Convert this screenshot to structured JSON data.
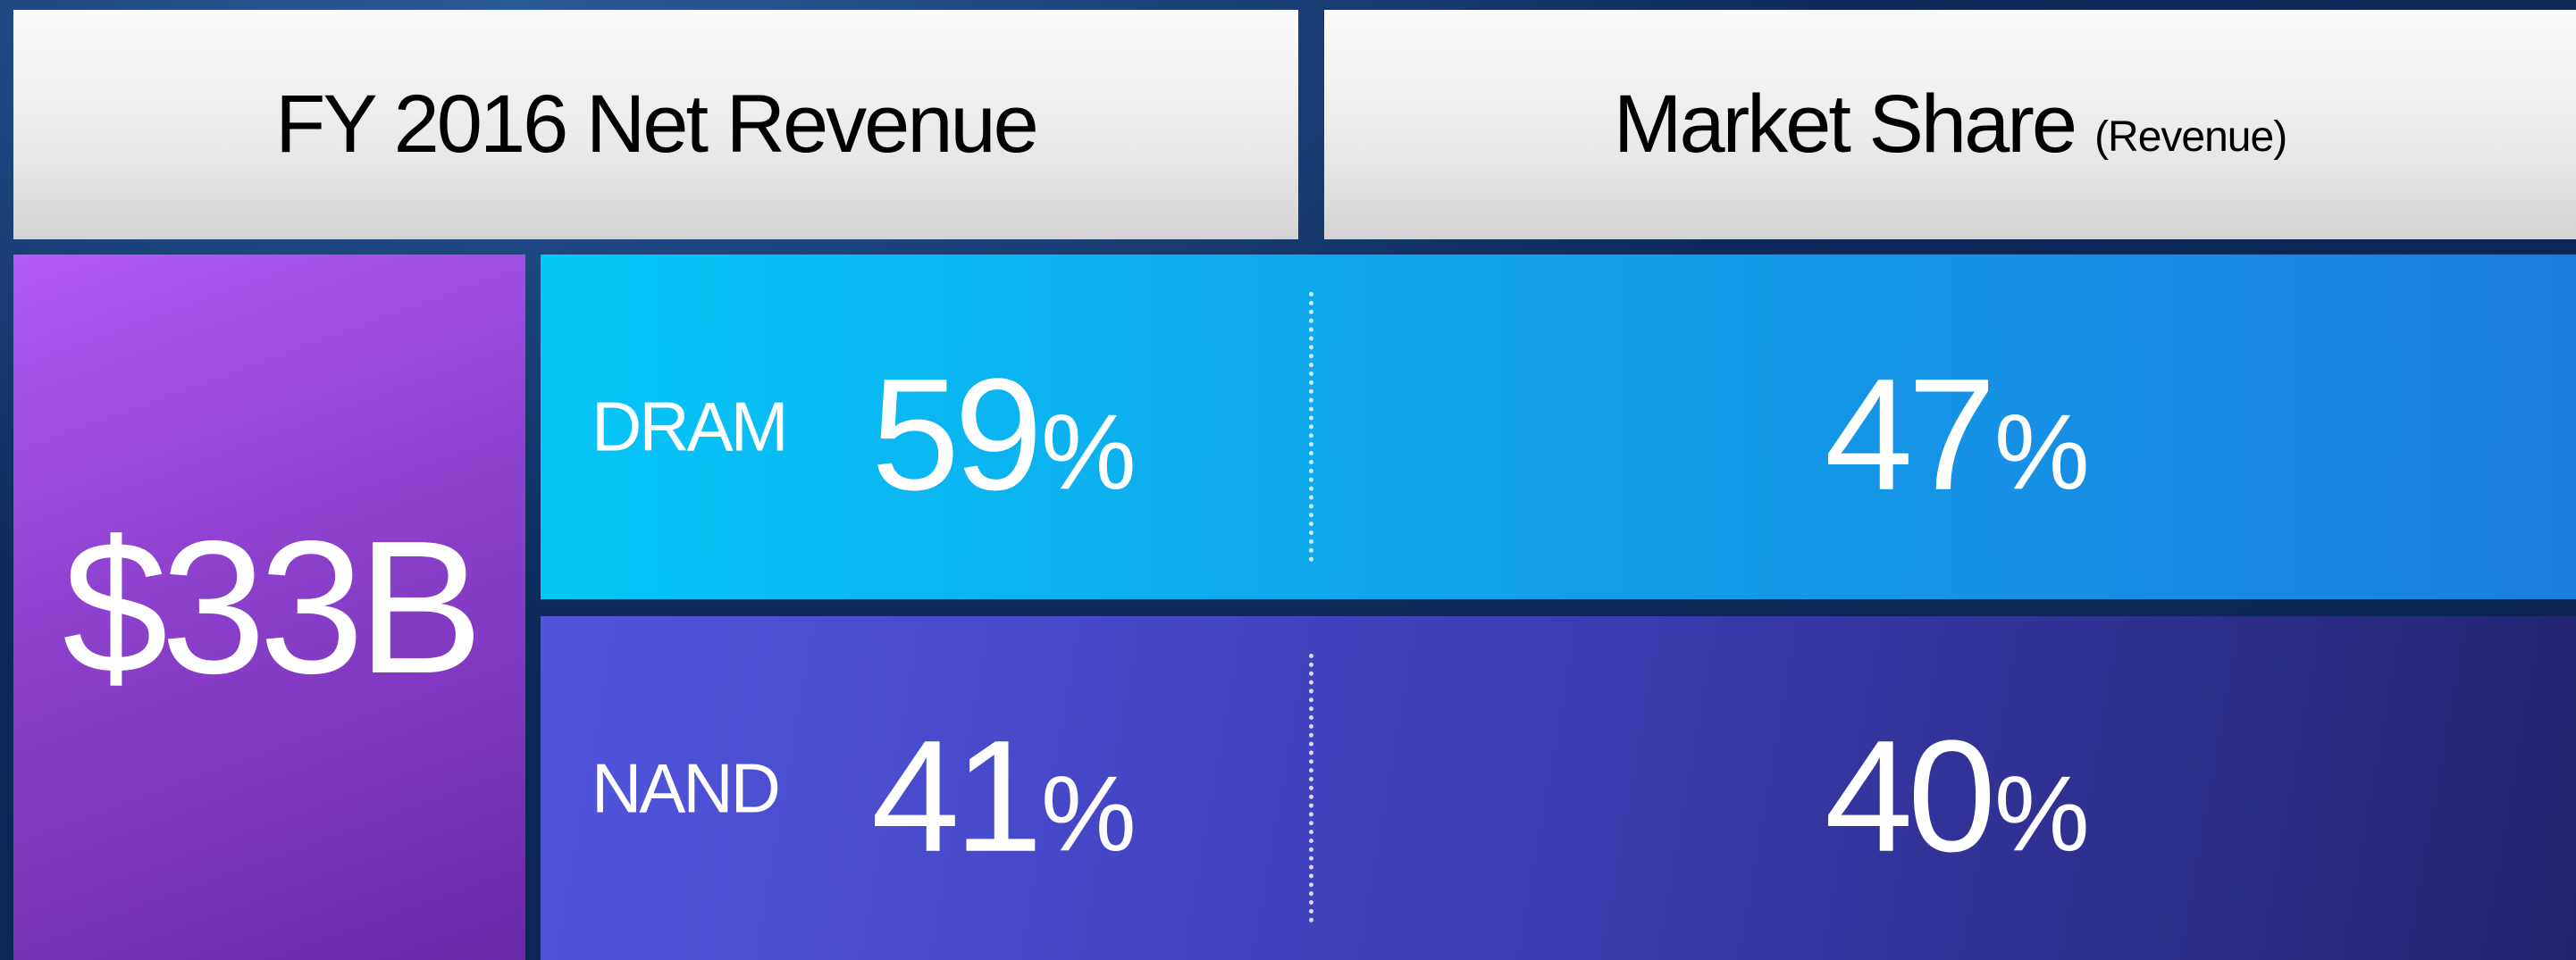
{
  "header": {
    "left": "FY 2016 Net Revenue",
    "right": "Market Share",
    "right_note": "(Revenue)"
  },
  "total": "$33B",
  "rows": [
    {
      "label": "DRAM",
      "revenue_share": {
        "number": "59",
        "unit": "%"
      },
      "market_share": {
        "number": "47",
        "unit": "%"
      }
    },
    {
      "label": "NAND",
      "revenue_share": {
        "number": "41",
        "unit": "%"
      },
      "market_share": {
        "number": "40",
        "unit": "%"
      }
    }
  ]
}
